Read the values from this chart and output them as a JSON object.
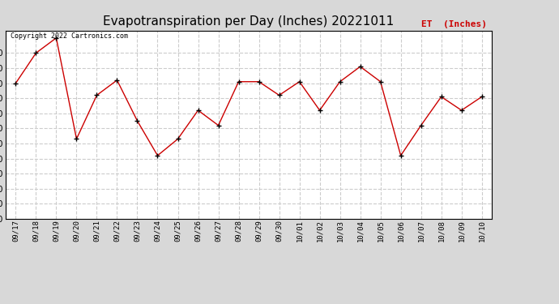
{
  "title": "Evapotranspiration per Day (Inches) 20221011",
  "legend_label": "ET  (Inches)",
  "copyright_text": "Copyright 2022 Cartronics.com",
  "x_labels": [
    "09/17",
    "09/18",
    "09/19",
    "09/20",
    "09/21",
    "09/22",
    "09/23",
    "09/24",
    "09/25",
    "09/26",
    "09/27",
    "09/28",
    "09/29",
    "09/30",
    "10/01",
    "10/02",
    "10/03",
    "10/04",
    "10/05",
    "10/06",
    "10/07",
    "10/08",
    "10/09",
    "10/10"
  ],
  "y_values": [
    0.09,
    0.11,
    0.12,
    0.053,
    0.082,
    0.092,
    0.065,
    0.042,
    0.053,
    0.072,
    0.062,
    0.091,
    0.091,
    0.082,
    0.091,
    0.072,
    0.091,
    0.101,
    0.091,
    0.042,
    0.062,
    0.081,
    0.072,
    0.081
  ],
  "line_color": "#cc0000",
  "marker_color": "#000000",
  "plot_bg_color": "#ffffff",
  "fig_bg_color": "#d8d8d8",
  "grid_color": "#cccccc",
  "title_fontsize": 11,
  "legend_color": "#cc0000",
  "ylim": [
    0.0,
    0.125
  ],
  "ytick_step": 0.01
}
